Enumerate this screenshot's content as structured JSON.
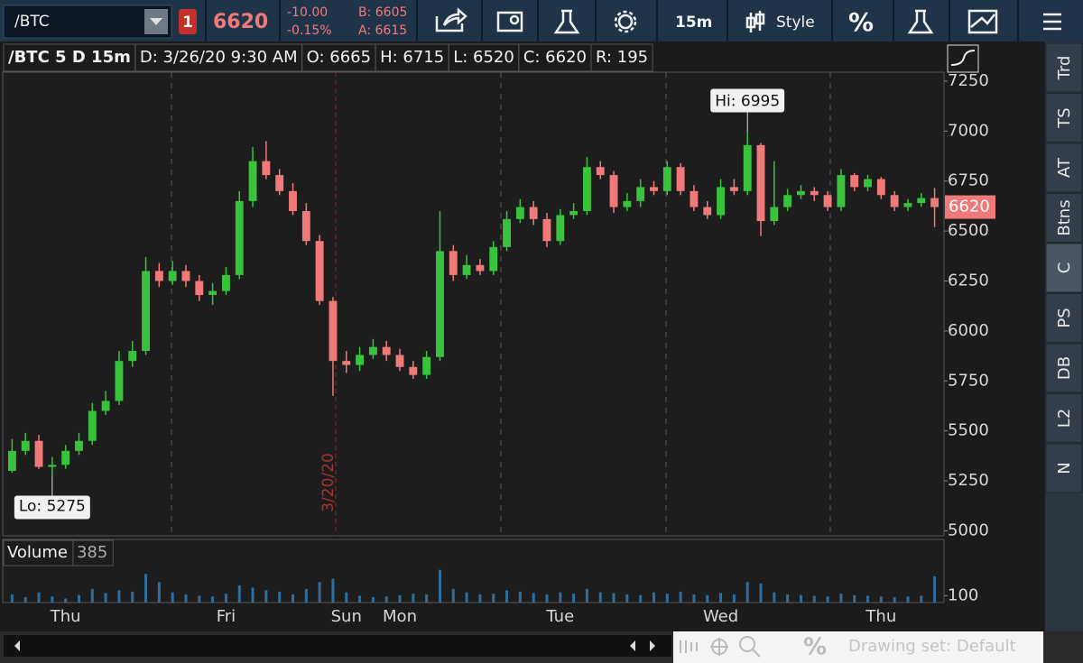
{
  "toolbar": {
    "symbol": "/BTC",
    "badge": "1",
    "last": "6620",
    "change": "-10.00",
    "change_pct": "-0.15%",
    "bid": "B: 6605",
    "ask": "A: 6615",
    "interval": "15m",
    "style": "Style",
    "percent": "%"
  },
  "chart_header": [
    "/BTC 5 D 15m",
    "D: 3/26/20 9:30 AM",
    "O: 6665",
    "H: 6715",
    "L: 6520",
    "C: 6620",
    "R: 195"
  ],
  "chart_data": {
    "type": "candlestick",
    "up_color": "#39c23c",
    "down_color": "#f07a7a",
    "volume_color": "#2f6f9f",
    "categories": [
      null,
      null,
      null,
      null,
      "Thu",
      null,
      null,
      null,
      null,
      null,
      null,
      null,
      null,
      null,
      null,
      null,
      "Fri",
      null,
      null,
      null,
      null,
      null,
      null,
      null,
      null,
      "Sun",
      null,
      null,
      null,
      "Mon",
      null,
      null,
      null,
      null,
      null,
      null,
      null,
      null,
      null,
      null,
      null,
      "Tue",
      null,
      null,
      null,
      null,
      null,
      null,
      null,
      null,
      null,
      null,
      null,
      "Wed",
      null,
      null,
      null,
      null,
      null,
      null,
      null,
      null,
      null,
      null,
      null,
      "Thu",
      null,
      null,
      null,
      null
    ],
    "open": [
      5300,
      5400,
      5450,
      5320,
      5330,
      5400,
      5450,
      5600,
      5650,
      5850,
      5900,
      6300,
      6250,
      6300,
      6250,
      6180,
      6200,
      6280,
      6650,
      6850,
      6780,
      6700,
      6600,
      6450,
      6150,
      5850,
      5830,
      5880,
      5920,
      5880,
      5820,
      5780,
      5870,
      6400,
      6280,
      6330,
      6300,
      6420,
      6560,
      6620,
      6560,
      6450,
      6580,
      6600,
      6820,
      6780,
      6620,
      6650,
      6720,
      6700,
      6820,
      6700,
      6620,
      6580,
      6720,
      6700,
      6930,
      6550,
      6620,
      6680,
      6700,
      6680,
      6620,
      6780,
      6720,
      6760,
      6680,
      6620,
      6640,
      6665
    ],
    "high": [
      5460,
      5490,
      5480,
      5370,
      5430,
      5490,
      5640,
      5700,
      5900,
      5950,
      6370,
      6340,
      6350,
      6330,
      6280,
      6240,
      6320,
      6700,
      6920,
      6950,
      6810,
      6740,
      6640,
      6480,
      6170,
      5900,
      5920,
      5960,
      5950,
      5910,
      5850,
      5900,
      6600,
      6430,
      6380,
      6360,
      6450,
      6600,
      6660,
      6650,
      6590,
      6610,
      6640,
      6870,
      6850,
      6800,
      6690,
      6760,
      6750,
      6850,
      6840,
      6730,
      6650,
      6760,
      6760,
      6995,
      6940,
      6850,
      6710,
      6730,
      6720,
      6700,
      6810,
      6790,
      6780,
      6770,
      6700,
      6660,
      6690,
      6715
    ],
    "low": [
      5290,
      5380,
      5310,
      5275,
      5310,
      5380,
      5430,
      5580,
      5630,
      5820,
      5880,
      6220,
      6230,
      6220,
      6150,
      6130,
      6180,
      6260,
      6620,
      6760,
      6680,
      6580,
      6430,
      6130,
      5675,
      5790,
      5800,
      5860,
      5850,
      5800,
      5760,
      5760,
      5850,
      6250,
      6260,
      6280,
      6280,
      6400,
      6540,
      6530,
      6420,
      6430,
      6560,
      6580,
      6760,
      6590,
      6600,
      6620,
      6680,
      6680,
      6680,
      6600,
      6560,
      6560,
      6680,
      6680,
      6475,
      6530,
      6600,
      6660,
      6650,
      6600,
      6600,
      6700,
      6700,
      6660,
      6600,
      6600,
      6620,
      6520
    ],
    "close": [
      5400,
      5450,
      5320,
      5330,
      5400,
      5450,
      5600,
      5650,
      5850,
      5900,
      6300,
      6250,
      6300,
      6250,
      6180,
      6200,
      6280,
      6650,
      6850,
      6780,
      6700,
      6600,
      6450,
      6150,
      5850,
      5830,
      5880,
      5920,
      5880,
      5820,
      5780,
      5870,
      6400,
      6280,
      6330,
      6300,
      6420,
      6560,
      6620,
      6560,
      6450,
      6580,
      6600,
      6820,
      6780,
      6620,
      6650,
      6720,
      6700,
      6820,
      6700,
      6620,
      6580,
      6720,
      6700,
      6930,
      6550,
      6620,
      6680,
      6700,
      6680,
      6620,
      6780,
      6720,
      6760,
      6680,
      6620,
      6640,
      6665,
      6620
    ],
    "volume": [
      120,
      80,
      150,
      90,
      60,
      110,
      200,
      140,
      180,
      160,
      420,
      300,
      150,
      120,
      100,
      90,
      130,
      250,
      220,
      180,
      160,
      120,
      200,
      300,
      350,
      150,
      100,
      80,
      90,
      110,
      130,
      120,
      480,
      200,
      150,
      120,
      130,
      180,
      160,
      140,
      120,
      150,
      130,
      200,
      150,
      140,
      120,
      110,
      150,
      130,
      160,
      120,
      110,
      140,
      120,
      300,
      280,
      150,
      120,
      110,
      100,
      90,
      130,
      110,
      100,
      90,
      80,
      90,
      100,
      385
    ],
    "ylim": [
      4975,
      7295
    ],
    "yticks": [
      5000,
      5250,
      5500,
      5750,
      6000,
      6250,
      6500,
      6750,
      7000,
      7250
    ],
    "volume_label": "Volume",
    "volume_ylim": [
      0,
      900
    ],
    "volume_yticks": [
      100
    ],
    "hi_marker": {
      "value": 6995,
      "label": "Hi: 6995"
    },
    "lo_marker": {
      "value": 5275,
      "label": "Lo: 5275"
    },
    "date_marker": "3/20/20"
  },
  "sidebar": [
    "Trd",
    "TS",
    "AT",
    "Btns",
    "C",
    "PS",
    "DB",
    "L2",
    "N"
  ],
  "footer": {
    "drawing_set": "Drawing set: Default"
  }
}
